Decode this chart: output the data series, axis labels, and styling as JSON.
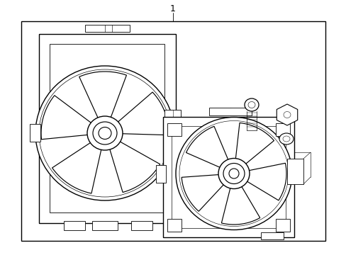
{
  "bg_color": "#ffffff",
  "line_color": "#000000",
  "lw": 1.0,
  "tlw": 0.6,
  "fig_width": 4.89,
  "fig_height": 3.6,
  "dpi": 100
}
